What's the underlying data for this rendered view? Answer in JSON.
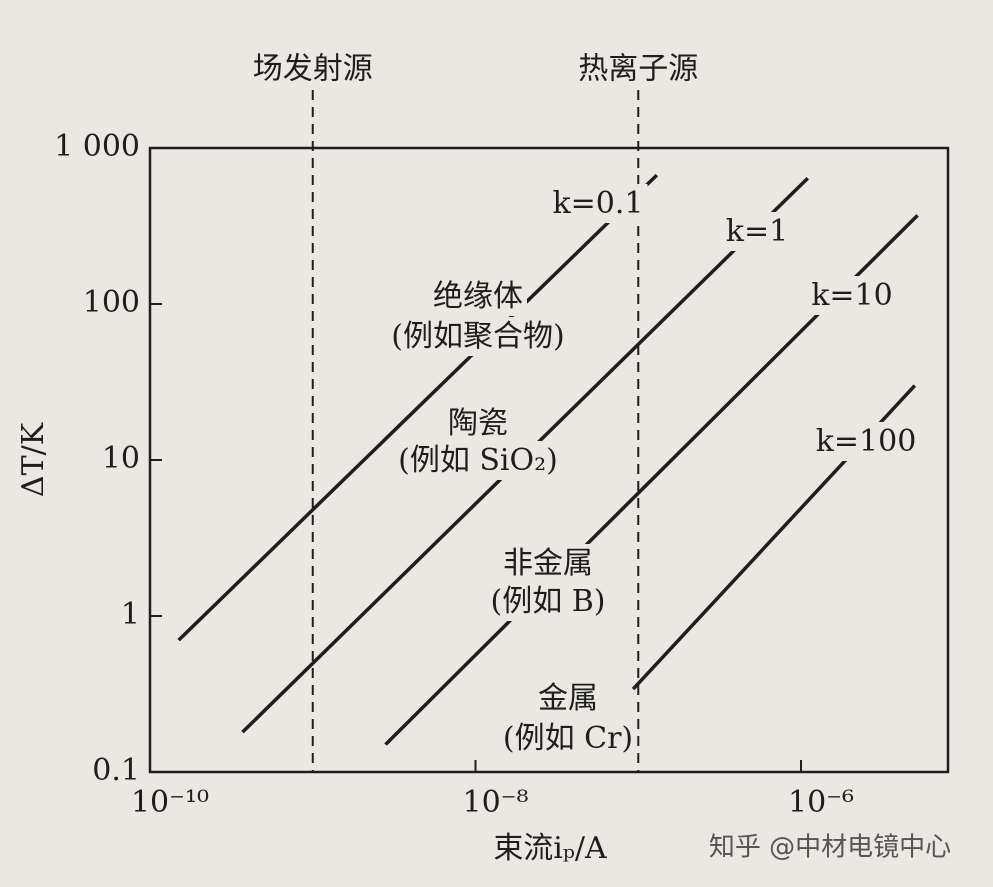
{
  "chart_data": {
    "type": "line",
    "x_label": "束流iₚ/A",
    "y_label": "ΔT/K",
    "x_log": true,
    "y_log": true,
    "xlim": [
      1e-10,
      8e-06
    ],
    "ylim": [
      0.1,
      1000
    ],
    "xticks": [
      {
        "value": 1e-10,
        "label": "10⁻¹⁰"
      },
      {
        "value": 1e-08,
        "label": "10⁻⁸"
      },
      {
        "value": 1e-06,
        "label": "10⁻⁶"
      }
    ],
    "yticks": [
      0.1,
      1,
      10,
      100,
      {
        "value": 1000,
        "label": "1 000"
      }
    ],
    "series": [
      {
        "name": "k=0.1",
        "color": "#1e1e1e",
        "x": [
          1.5e-10,
          1.3e-07
        ],
        "values": [
          0.7,
          670
        ]
      },
      {
        "name": "k=1",
        "color": "#1e1e1e",
        "x": [
          3.7e-10,
          1.1e-06
        ],
        "values": [
          0.18,
          640
        ]
      },
      {
        "name": "k=10",
        "color": "#1e1e1e",
        "x": [
          2.8e-09,
          5.2e-06
        ],
        "values": [
          0.15,
          370
        ]
      },
      {
        "name": "k=100",
        "color": "#1e1e1e",
        "x": [
          9.3e-08,
          5e-06
        ],
        "values": [
          0.34,
          30
        ]
      }
    ],
    "vlines": [
      {
        "x": 1e-09,
        "label": "场发射源"
      },
      {
        "x": 1e-07,
        "label": "热离子源"
      }
    ],
    "annotations": [
      "绝缘体",
      "(例如聚合物)",
      "陶瓷",
      "(例如 SiO₂)",
      "非金属",
      "(例如 B)",
      "金属",
      "(例如 Cr)"
    ],
    "watermark": "知乎 @中材电镜中心"
  }
}
